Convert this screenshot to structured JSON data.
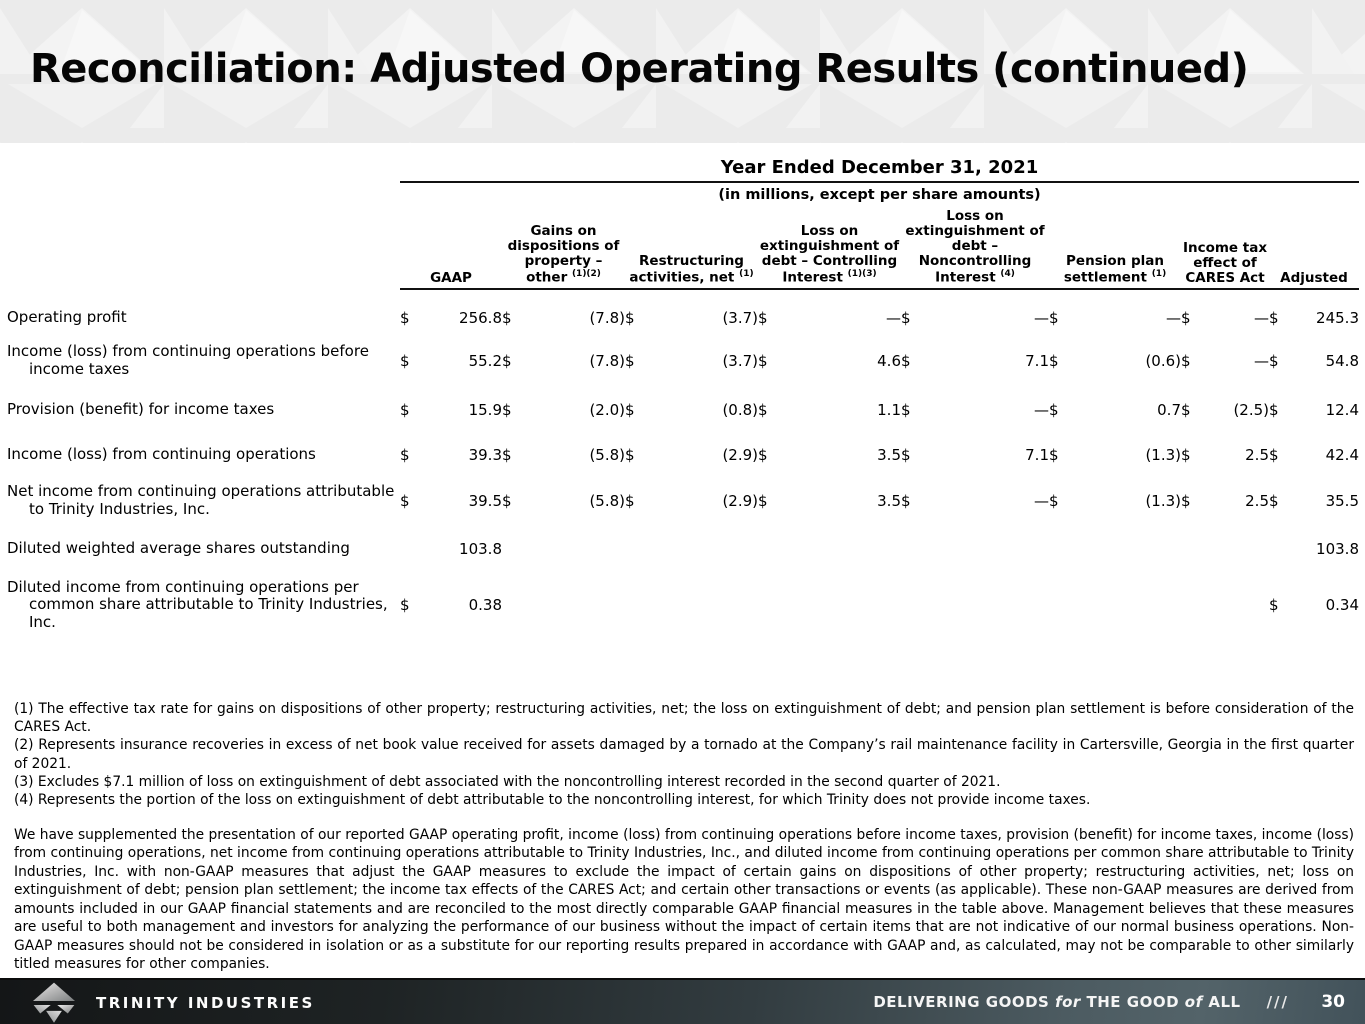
{
  "slide": {
    "title": "Reconciliation: Adjusted Operating Results (continued)"
  },
  "brand_colors": {
    "band_background": "#ebebeb",
    "footer_dark": "#141617",
    "footer_slate": "#4c5b61"
  },
  "table": {
    "period_header": "Year Ended December 31, 2021",
    "units_note": "(in millions, except per share amounts)",
    "columns": [
      {
        "label": "GAAP",
        "sup": ""
      },
      {
        "label": "Gains on dispositions of property – other",
        "sup": "(1)(2)"
      },
      {
        "label": "Restructuring activities, net",
        "sup": "(1)"
      },
      {
        "label": "Loss on extinguishment of debt – Controlling Interest",
        "sup": "(1)(3)"
      },
      {
        "label": "Loss on extinguishment of debt – Noncontrolling Interest",
        "sup": "(4)"
      },
      {
        "label": "Pension plan settlement",
        "sup": "(1)"
      },
      {
        "label": "Income tax effect of CARES Act",
        "sup": ""
      },
      {
        "label": "Adjusted",
        "sup": ""
      }
    ],
    "rows": [
      {
        "label": "Operating profit",
        "cells": [
          [
            "$",
            "256.8"
          ],
          [
            "$",
            "(7.8)"
          ],
          [
            "$",
            "(3.7)"
          ],
          [
            "$",
            "—"
          ],
          [
            "$",
            "—"
          ],
          [
            "$",
            "—"
          ],
          [
            "$",
            "—"
          ],
          [
            "$",
            "245.3"
          ]
        ]
      },
      {
        "label": "Income (loss) from continuing operations before income taxes",
        "cells": [
          [
            "$",
            "55.2"
          ],
          [
            "$",
            "(7.8)"
          ],
          [
            "$",
            "(3.7)"
          ],
          [
            "$",
            "4.6"
          ],
          [
            "$",
            "7.1"
          ],
          [
            "$",
            "(0.6)"
          ],
          [
            "$",
            "—"
          ],
          [
            "$",
            "54.8"
          ]
        ]
      },
      {
        "label": "Provision (benefit) for income taxes",
        "cells": [
          [
            "$",
            "15.9"
          ],
          [
            "$",
            "(2.0)"
          ],
          [
            "$",
            "(0.8)"
          ],
          [
            "$",
            "1.1"
          ],
          [
            "$",
            "—"
          ],
          [
            "$",
            "0.7"
          ],
          [
            "$",
            "(2.5)"
          ],
          [
            "$",
            "12.4"
          ]
        ]
      },
      {
        "label": "Income (loss) from continuing operations",
        "cells": [
          [
            "$",
            "39.3"
          ],
          [
            "$",
            "(5.8)"
          ],
          [
            "$",
            "(2.9)"
          ],
          [
            "$",
            "3.5"
          ],
          [
            "$",
            "7.1"
          ],
          [
            "$",
            "(1.3)"
          ],
          [
            "$",
            "2.5"
          ],
          [
            "$",
            "42.4"
          ]
        ]
      },
      {
        "label": "Net income from continuing operations attributable to Trinity Industries, Inc.",
        "cells": [
          [
            "$",
            "39.5"
          ],
          [
            "$",
            "(5.8)"
          ],
          [
            "$",
            "(2.9)"
          ],
          [
            "$",
            "3.5"
          ],
          [
            "$",
            "—"
          ],
          [
            "$",
            "(1.3)"
          ],
          [
            "$",
            "2.5"
          ],
          [
            "$",
            "35.5"
          ]
        ]
      },
      {
        "label": "Diluted weighted average shares outstanding",
        "cells": [
          [
            "",
            "103.8"
          ],
          null,
          null,
          null,
          null,
          null,
          null,
          [
            "",
            "103.8"
          ]
        ]
      },
      {
        "label": "Diluted income from continuing operations per common share attributable to Trinity Industries, Inc.",
        "cells": [
          [
            "$",
            "0.38"
          ],
          null,
          null,
          null,
          null,
          null,
          null,
          [
            "$",
            "0.34"
          ]
        ]
      }
    ]
  },
  "footnotes": [
    "(1) The effective tax rate for gains on dispositions of other property; restructuring activities, net; the loss on extinguishment of debt; and pension plan settlement is before consideration of the CARES Act.",
    "(2) Represents insurance recoveries in excess of net book value received for assets damaged by a tornado at the Company’s rail maintenance facility in Cartersville, Georgia in the first quarter of 2021.",
    "(3) Excludes $7.1 million of loss on extinguishment of debt associated with the noncontrolling interest recorded in the second quarter of 2021.",
    "(4) Represents the portion of the loss on extinguishment of debt attributable to the noncontrolling interest, for which Trinity does not provide income taxes."
  ],
  "body_paragraph": "We have supplemented the presentation of our reported GAAP operating profit, income (loss) from continuing operations before income taxes, provision (benefit) for income taxes, income (loss) from continuing operations, net income from continuing operations attributable to Trinity Industries, Inc., and diluted income from continuing operations per common share attributable to Trinity Industries, Inc. with non-GAAP measures that adjust the GAAP measures to exclude the impact of certain gains on dispositions of other property; restructuring activities, net; loss on extinguishment of debt; pension plan settlement; the income tax effects of the CARES Act; and certain other transactions or events (as applicable). These non-GAAP measures are derived from amounts included in our GAAP financial statements and are reconciled to the most directly comparable GAAP financial measures in the table above. Management believes that these measures are useful to both management and investors for analyzing the performance of our business without the impact of certain items that are not indicative of our normal business operations. Non-GAAP measures should not be considered in isolation or as a substitute for our reporting results prepared in accordance with GAAP and, as calculated, may not be comparable to other similarly titled measures for other companies.",
  "footer": {
    "company": "TRINITY INDUSTRIES",
    "tagline": [
      {
        "t": "DELIVERING GOODS ",
        "i": false
      },
      {
        "t": "for",
        "i": true
      },
      {
        "t": " THE GOOD ",
        "i": false
      },
      {
        "t": "of",
        "i": true
      },
      {
        "t": " ALL",
        "i": false
      }
    ],
    "separator": "///",
    "page": "30"
  }
}
